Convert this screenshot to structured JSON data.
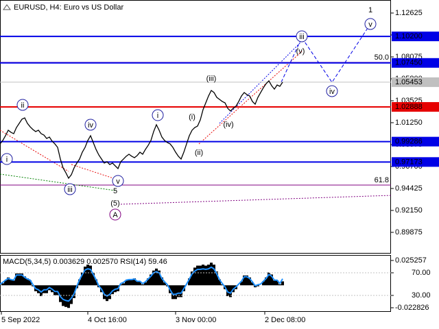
{
  "chart_data": [
    {
      "type": "line",
      "title": "EURUSD, H4:  Euro vs US Dollar",
      "xlim": [
        0,
        142.5
      ],
      "ylim": [
        0.87671,
        1.13976
      ],
      "yticks": [
        {
          "value": 1.12625,
          "label": "1.12625"
        },
        {
          "value": 1.1035,
          "label": "1.10350"
        },
        {
          "value": 1.08075,
          "label": "1.08075"
        },
        {
          "value": 1.058,
          "label": "1.05800"
        },
        {
          "value": 1.03525,
          "label": "1.03525"
        },
        {
          "value": 1.0125,
          "label": "1.01250"
        },
        {
          "value": 0.98975,
          "label": "0.98975"
        },
        {
          "value": 0.967,
          "label": "0.96700"
        },
        {
          "value": 0.94425,
          "label": "0.94425"
        },
        {
          "value": 0.9215,
          "label": "0.92150"
        },
        {
          "value": 0.89875,
          "label": "0.89875"
        }
      ],
      "series": [
        {
          "color": "#000000",
          "values": [
            0.9905,
            0.994,
            0.999,
            1.0047,
            1.0025,
            1.0011,
            1.0075,
            1.0118,
            1.0161,
            1.0175,
            1.0118,
            1.0082,
            1.0054,
            1.0033,
            1.0047,
            1.0011,
            0.9997,
            0.9961,
            0.9976,
            0.9933,
            0.9905,
            0.9869,
            0.9748,
            0.9656,
            0.9606,
            0.9549,
            0.9585,
            0.9656,
            0.9706,
            0.9748,
            0.9819,
            0.9869,
            0.994,
            0.999,
            0.9919,
            0.9848,
            0.9791,
            0.9748,
            0.9706,
            0.972,
            0.9691,
            0.9706,
            0.9677,
            0.9649,
            0.972,
            0.9748,
            0.9777,
            0.9798,
            0.9777,
            0.9762,
            0.9784,
            0.9819,
            0.9798,
            0.9848,
            0.989,
            0.994,
            1.0033,
            1.0104,
            1.0047,
            0.9976,
            0.994,
            0.9919,
            0.9905,
            0.9869,
            0.9819,
            0.9777,
            0.9748,
            0.9819,
            0.9905,
            0.999,
            1.0047,
            1.0075,
            1.009,
            1.0154,
            1.026,
            1.0331,
            1.0402,
            1.0459,
            1.0438,
            1.0388,
            1.0367,
            1.0345,
            1.0331,
            1.0274,
            1.0246,
            1.0274,
            1.0296,
            1.0345,
            1.0402,
            1.0438,
            1.0416,
            1.0402,
            1.0345,
            1.0317,
            1.0388,
            1.0438,
            1.0488,
            1.053,
            1.0559,
            1.0509,
            1.0473,
            1.0516,
            1.0502,
            1.05453
          ]
        }
      ],
      "levels": [
        {
          "value": 1.102,
          "label": "1.10200",
          "color": "#0000e6"
        },
        {
          "value": 1.0745,
          "label": "1.07450",
          "color": "#0000e6"
        },
        {
          "value": 1.05453,
          "label": "1.05453",
          "color": "#c0c0c0"
        },
        {
          "value": 1.02888,
          "label": "1.02888",
          "color": "#e60000"
        },
        {
          "value": 0.99286,
          "label": "0.99286",
          "color": "#0000e6"
        },
        {
          "value": 0.97173,
          "label": "0.97173",
          "color": "#0000e6"
        }
      ],
      "fibo": {
        "color": "#800080",
        "levels": [
          {
            "value": 1.0751,
            "label": "50.0"
          },
          {
            "value": 0.9478,
            "label": "61.8"
          }
        ]
      },
      "guides": [
        {
          "color": "#e60000",
          "dash": "dotted",
          "x": [
            0,
            25
          ],
          "y": [
            1.0047,
            0.962
          ]
        },
        {
          "color": "#e60000",
          "dash": "dotted",
          "x": [
            26,
            42
          ],
          "y": [
            0.9692,
            0.9542
          ]
        },
        {
          "color": "#008000",
          "dash": "dotted",
          "x": [
            0,
            42
          ],
          "y": [
            0.9592,
            0.9421
          ]
        },
        {
          "color": "#800080",
          "dash": "dotted",
          "x": [
            44,
            142.5
          ],
          "y": [
            0.9279,
            0.9371
          ]
        },
        {
          "color": "#e60000",
          "dash": "dotted",
          "x": [
            72.5,
            110
          ],
          "y": [
            0.9905,
            1.0864
          ]
        },
        {
          "color": "#0000e6",
          "dash": "dotted",
          "x": [
            80,
            110
          ],
          "y": [
            1.0118,
            1.0971
          ]
        },
        {
          "color": "#0000e6",
          "dash": "dashed",
          "x": [
            102.5,
            110,
            121,
            135
          ],
          "y": [
            1.0545,
            1.1007,
            1.0544,
            1.1149
          ]
        }
      ],
      "annotations": [
        {
          "text": "i",
          "x": 2.5,
          "y": 0.9748,
          "color": "#1e1ea0",
          "style": "circled"
        },
        {
          "text": "ii",
          "x": 8.25,
          "y": 1.031,
          "color": "#1e1ea0",
          "style": "circled"
        },
        {
          "text": "iii",
          "x": 25.5,
          "y": 0.9435,
          "color": "#1e1ea0",
          "style": "circled"
        },
        {
          "text": "iv",
          "x": 33,
          "y": 1.0104,
          "color": "#1e1ea0",
          "style": "circled"
        },
        {
          "text": "v",
          "x": 43,
          "y": 0.9521,
          "color": "#1e1ea0",
          "style": "circled"
        },
        {
          "text": "5",
          "x": 42,
          "y": 0.9421,
          "color": "#a00000",
          "style": "plain"
        },
        {
          "text": "(5)",
          "x": 42,
          "y": 0.9293,
          "color": "#008000",
          "style": "plain"
        },
        {
          "text": "A",
          "x": 42,
          "y": 0.9172,
          "color": "#800080",
          "style": "circled"
        },
        {
          "text": "i",
          "x": 57.5,
          "y": 1.0203,
          "color": "#1e1ea0",
          "style": "circled"
        },
        {
          "text": "(i)",
          "x": 70,
          "y": 1.0189,
          "color": "#e60000",
          "style": "plain"
        },
        {
          "text": "(ii)",
          "x": 72.5,
          "y": 0.9819,
          "color": "#e60000",
          "style": "plain"
        },
        {
          "text": "(iii)",
          "x": 77,
          "y": 1.0587,
          "color": "#e60000",
          "style": "plain"
        },
        {
          "text": "(iv)",
          "x": 83.25,
          "y": 1.0111,
          "color": "#e60000",
          "style": "plain"
        },
        {
          "text": "(v)",
          "x": 109.5,
          "y": 1.0871,
          "color": "#e60000",
          "style": "plain"
        },
        {
          "text": "iii",
          "x": 110,
          "y": 1.1021,
          "color": "#1e1ea0",
          "style": "circled"
        },
        {
          "text": "iv",
          "x": 121,
          "y": 1.0452,
          "color": "#1e1ea0",
          "style": "circled"
        },
        {
          "text": "v",
          "x": 135,
          "y": 1.1149,
          "color": "#1e1ea0",
          "style": "circled"
        },
        {
          "text": "1",
          "x": 135,
          "y": 1.1298,
          "color": "#e60000",
          "style": "large"
        }
      ]
    },
    {
      "type": "macd",
      "title": "MACD(5,34,5) 0.003629 0.002570 RSI(14) 59.46",
      "xlim": [
        0,
        142.5
      ],
      "xticks": [
        {
          "value": 0.5,
          "label": "5 Sep 2022"
        },
        {
          "value": 32,
          "label": "4 Oct 16:00"
        },
        {
          "value": 64,
          "label": "3 Nov 00:00"
        },
        {
          "value": 96.5,
          "label": "2 Dec 08:00"
        }
      ],
      "ylim": [
        -0.02701,
        0.03083
      ],
      "yticks": [
        0.025257,
        -0.022826
      ],
      "y2lim": [
        0.9,
        101.5
      ],
      "y2ticks": [
        {
          "value": 70,
          "label": "70.00"
        },
        {
          "value": 30,
          "label": "30.00"
        }
      ],
      "series": [
        {
          "type": "bar",
          "color": "#000000",
          "values": [
            0,
            0.002,
            0.005,
            0.008,
            0.006,
            0.005,
            0.012,
            0.012,
            0.012,
            0.009,
            0.007,
            0.005,
            -0.001,
            -0.006,
            -0.008,
            -0.011,
            -0.008,
            -0.008,
            -0.005,
            -0.007,
            -0.01,
            -0.01,
            -0.017,
            -0.021,
            -0.022,
            -0.023,
            -0.019,
            -0.013,
            -0.003,
            0.006,
            0.013,
            0.019,
            0.021,
            0.02,
            0.013,
            0.006,
            -0.002,
            -0.007,
            -0.014,
            -0.016,
            -0.014,
            -0.009,
            -0.007,
            -0.006,
            0.001,
            0.002,
            0.005,
            0.006,
            0.006,
            0.007,
            0.004,
            0.004,
            0.001,
            0.003,
            0.007,
            0.011,
            0.015,
            0.017,
            0.015,
            0.008,
            0.003,
            -0.001,
            -0.008,
            -0.014,
            -0.014,
            -0.012,
            -0.012,
            -0.006,
            0,
            0.007,
            0.014,
            0.018,
            0.02,
            0.02,
            0.021,
            0.02,
            0.021,
            0.023,
            0.021,
            0.014,
            0.006,
            0.001,
            -0.004,
            -0.011,
            -0.012,
            -0.007,
            -0.004,
            0,
            0.004,
            0.01,
            0.01,
            0.008,
            0.003,
            -0.002,
            -0.001,
            0,
            0.004,
            0.008,
            0.013,
            0.011,
            0.005,
            0.005,
            0.001,
            0.004
          ]
        },
        {
          "type": "line",
          "axis": "y2",
          "color": "#1e90ff",
          "values": [
            50,
            53,
            57,
            60,
            58,
            57,
            66,
            66,
            66,
            62,
            59,
            57,
            49,
            42,
            40,
            36,
            40,
            40,
            44,
            41,
            37,
            37,
            28,
            23,
            21,
            20,
            25,
            33,
            46,
            58,
            67,
            75,
            77,
            76,
            67,
            58,
            47,
            41,
            32,
            29,
            32,
            38,
            41,
            42,
            51,
            53,
            57,
            58,
            58,
            59,
            55,
            55,
            51,
            54,
            59,
            64,
            70,
            72,
            70,
            60,
            54,
            49,
            40,
            32,
            32,
            34,
            34,
            42,
            50,
            59,
            68,
            73,
            76,
            76,
            77,
            76,
            77,
            80,
            77,
            68,
            58,
            51,
            45,
            36,
            34,
            41,
            45,
            50,
            55,
            63,
            63,
            60,
            54,
            47,
            49,
            50,
            55,
            60,
            67,
            64,
            57,
            57,
            51,
            59.46
          ]
        }
      ]
    }
  ]
}
